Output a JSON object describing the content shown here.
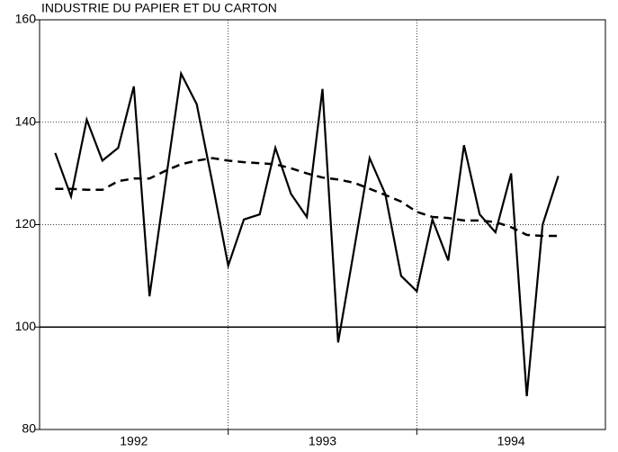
{
  "chart_data": {
    "type": "line",
    "title": "INDUSTRIE DU PAPIER ET DU CARTON",
    "x": [
      1992.083,
      1992.167,
      1992.25,
      1992.333,
      1992.417,
      1992.5,
      1992.583,
      1992.667,
      1992.75,
      1992.833,
      1992.917,
      1993.0,
      1993.083,
      1993.167,
      1993.25,
      1993.333,
      1993.417,
      1993.5,
      1993.583,
      1993.667,
      1993.75,
      1993.833,
      1993.917,
      1994.0,
      1994.083,
      1994.167,
      1994.25,
      1994.333,
      1994.417,
      1994.5,
      1994.583,
      1994.667,
      1994.75
    ],
    "series": [
      {
        "color": "#000000",
        "dashed": false,
        "values": [
          134,
          125.5,
          140.5,
          132.5,
          135,
          147,
          106,
          128,
          149.5,
          143.5,
          128,
          112,
          121,
          122,
          135,
          126,
          121.5,
          146.5,
          97,
          115,
          133,
          126,
          110,
          107,
          121,
          113,
          135.5,
          122,
          118.5,
          130,
          86.5,
          120,
          129.5
        ]
      },
      {
        "color": "#000000",
        "dashed": true,
        "values": [
          127,
          127,
          126.8,
          126.8,
          128.5,
          129,
          129,
          130.5,
          131.8,
          132.5,
          133,
          132.5,
          132.2,
          132,
          131.8,
          131,
          130,
          129.2,
          128.8,
          128.2,
          127,
          125.8,
          124.5,
          122.5,
          121.5,
          121.3,
          120.8,
          120.8,
          120.5,
          119.5,
          118,
          117.8,
          117.8
        ]
      }
    ],
    "xlim": [
      1992,
      1995
    ],
    "xticks": [
      {
        "value": 1992.5,
        "label": "1992"
      },
      {
        "value": 1993.5,
        "label": "1993"
      },
      {
        "value": 1994.5,
        "label": "1994"
      }
    ],
    "xgrid": [
      1993,
      1994
    ],
    "ylim": [
      80,
      160
    ],
    "yticks": [
      80,
      100,
      120,
      140,
      160
    ],
    "reference_line": 100,
    "grid": true
  }
}
